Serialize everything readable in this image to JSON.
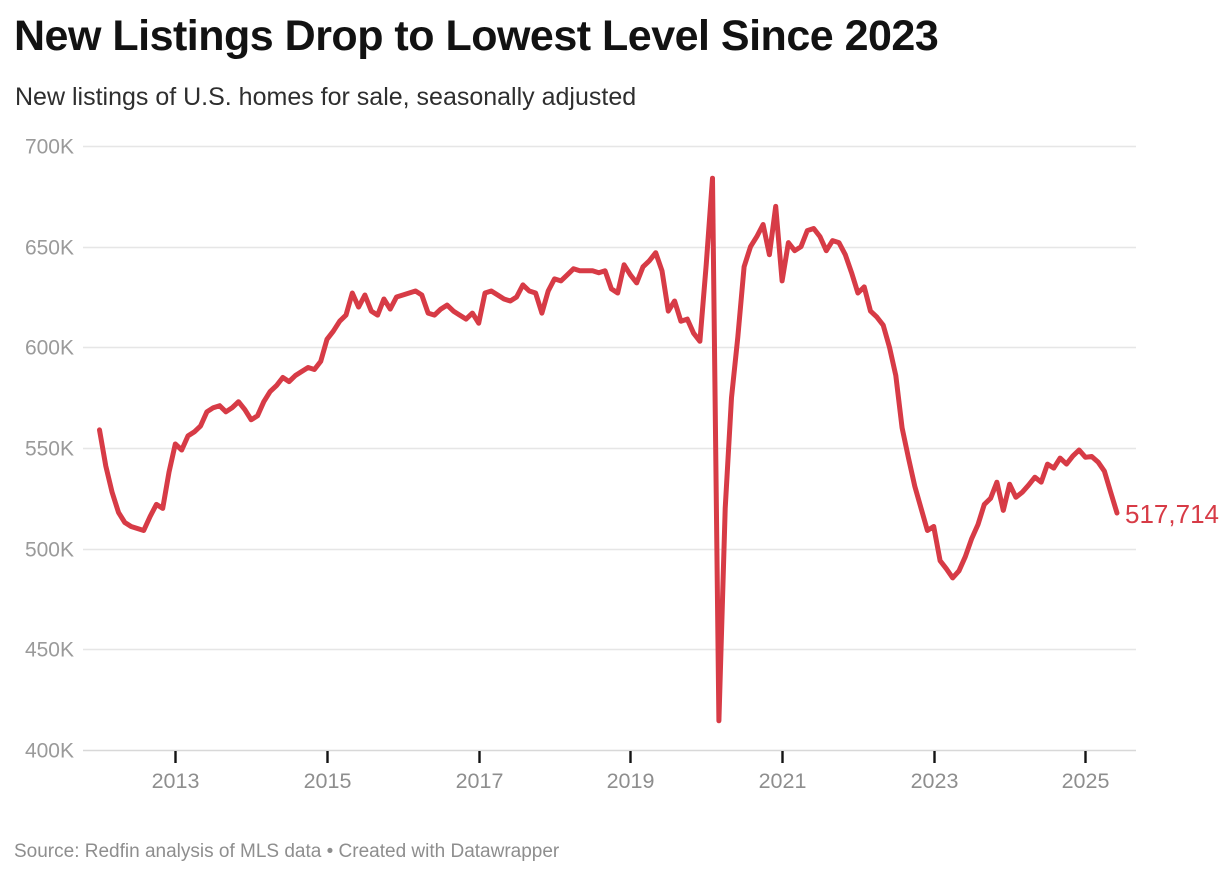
{
  "header": {
    "title": "New Listings Drop to Lowest Level Since 2023",
    "subtitle": "New listings of U.S. homes for sale, seasonally adjusted"
  },
  "footer": {
    "source": "Source: Redfin analysis of MLS data • Created with Datawrapper"
  },
  "chart_data": {
    "type": "line",
    "title": "New Listings Drop to Lowest Level Since 2023",
    "subtitle": "New listings of U.S. homes for sale, seasonally adjusted",
    "unit": "thousands of listings",
    "frequency": "monthly",
    "x_start": "2012-01",
    "x_end": "2025-06",
    "x_tick_years": [
      2013,
      2015,
      2017,
      2019,
      2021,
      2023,
      2025
    ],
    "x_tick_labels": [
      "2013",
      "2015",
      "2017",
      "2019",
      "2021",
      "2023",
      "2025"
    ],
    "y_ticks": [
      {
        "label": "700K",
        "value": 700
      },
      {
        "label": "650K",
        "value": 650
      },
      {
        "label": "600K",
        "value": 600
      },
      {
        "label": "550K",
        "value": 550
      },
      {
        "label": "500K",
        "value": 500
      },
      {
        "label": "450K",
        "value": 450
      },
      {
        "label": "400K",
        "value": 400
      }
    ],
    "ylim": [
      400,
      700
    ],
    "grid": "horizontal",
    "legend": "none",
    "line_color": "#d73b46",
    "end_label": "517,714",
    "end_value": 517714,
    "series": [
      {
        "name": "New listings (seasonally adjusted)",
        "values_thousands": [
          559,
          541,
          528,
          518,
          513,
          511,
          510,
          509,
          516,
          522,
          520,
          538,
          552,
          549,
          556,
          558,
          561,
          568,
          570,
          571,
          568,
          570,
          573,
          569,
          564,
          566,
          573,
          578,
          581,
          585,
          583,
          586,
          588,
          590,
          589,
          593,
          604,
          608,
          613,
          616,
          627,
          620,
          626,
          618,
          616,
          624,
          619,
          625,
          626,
          627,
          628,
          626,
          617,
          616,
          619,
          621,
          618,
          616,
          614,
          617,
          612,
          627,
          628,
          626,
          624,
          623,
          625,
          631,
          628,
          627,
          617,
          628,
          634,
          633,
          636,
          639,
          638,
          638,
          638,
          637,
          638,
          629,
          627,
          641,
          636,
          632,
          640,
          643,
          647,
          638,
          618,
          623,
          613,
          614,
          607,
          603,
          641,
          684,
          414.5,
          520,
          575,
          605,
          640,
          650,
          655,
          661,
          646,
          670,
          633,
          652,
          648,
          650,
          658,
          659,
          655,
          648,
          653,
          652,
          646,
          637,
          627,
          630,
          618,
          615,
          611,
          600,
          586,
          560,
          545,
          531,
          520,
          509,
          511,
          494,
          490,
          485.5,
          489,
          496,
          505,
          512,
          522,
          525,
          533,
          519,
          532,
          525.5,
          528,
          531.5,
          535.5,
          533,
          542,
          540,
          545,
          542,
          546,
          549,
          545.4,
          545.8,
          543,
          538.5,
          528,
          517.714
        ]
      }
    ],
    "colors": {
      "line": "#d73b46",
      "gridline": "#e6e6e6",
      "baseline": "#d8d8d8",
      "tick": "#141414",
      "axis_text": "#9a9a9a"
    }
  }
}
